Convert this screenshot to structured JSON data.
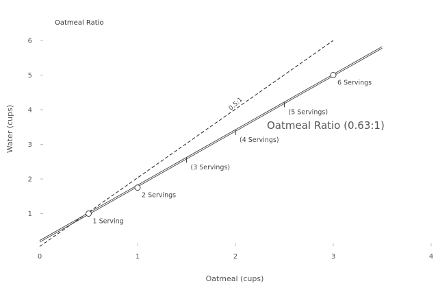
{
  "chart_data": {
    "type": "line",
    "title": "Oatmeal Ratio",
    "xlabel": "Oatmeal (cups)",
    "ylabel": "Water (cups)",
    "xlim": [
      0,
      4
    ],
    "ylim": [
      0,
      6
    ],
    "x_ticks": [
      "0",
      "1",
      "2",
      "3",
      "4"
    ],
    "y_ticks": [
      "1",
      "2",
      "3",
      "4",
      "5",
      "6"
    ],
    "grid": false,
    "series": [
      {
        "name": "Oatmeal Ratio (0.63:1)",
        "line": [
          [
            0,
            0.2
          ],
          [
            3.5,
            5.8
          ]
        ],
        "points": [
          {
            "x": 0.5,
            "y": 1.0,
            "label": "1 Serving",
            "marker": "circle"
          },
          {
            "x": 1.0,
            "y": 1.75,
            "label": "2 Servings",
            "marker": "circle"
          },
          {
            "x": 1.5,
            "y": 2.55,
            "label": "(3 Servings)",
            "marker": "tick"
          },
          {
            "x": 2.0,
            "y": 3.35,
            "label": "(4 Servings)",
            "marker": "tick"
          },
          {
            "x": 2.5,
            "y": 4.15,
            "label": "(5 Servings)",
            "marker": "tick"
          },
          {
            "x": 3.0,
            "y": 5.0,
            "label": "6 Servings",
            "marker": "circle"
          }
        ]
      },
      {
        "name": "0.5:1",
        "style": "dashed",
        "line": [
          [
            0,
            0.05
          ],
          [
            3.0,
            6.0
          ]
        ]
      }
    ]
  }
}
